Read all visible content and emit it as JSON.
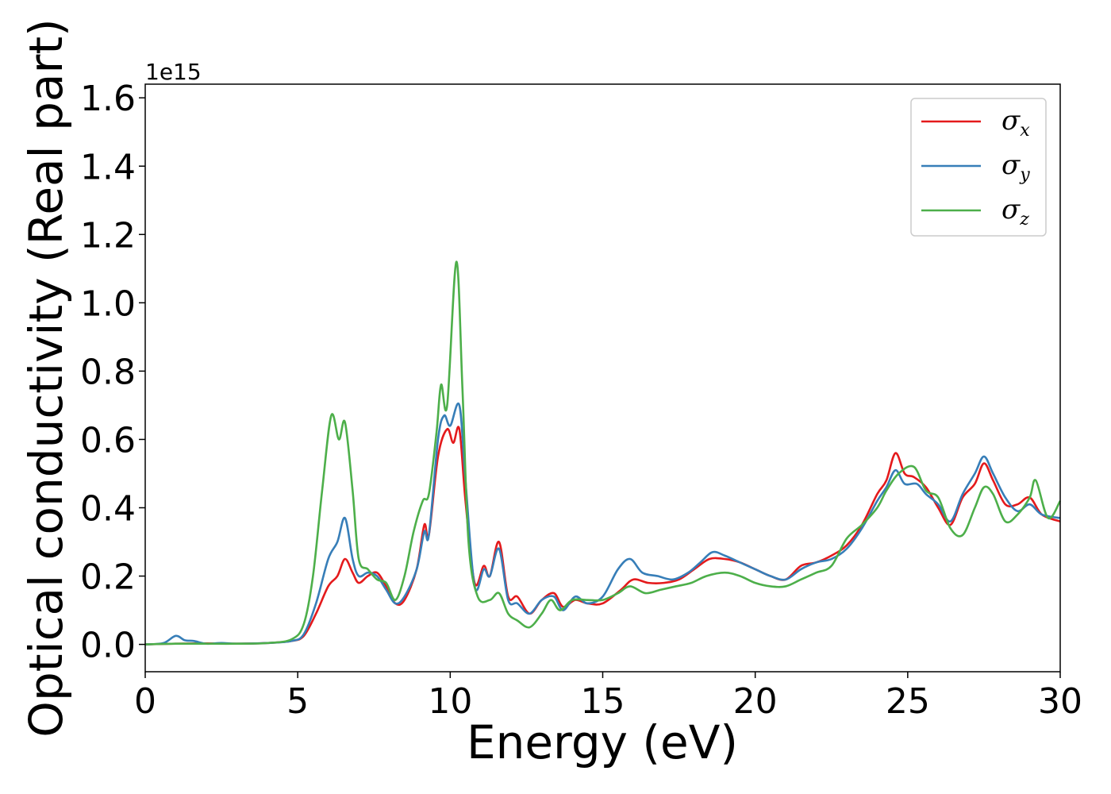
{
  "chart_data": {
    "type": "line",
    "xlabel": "Energy (eV)",
    "ylabel": "Optical conductivity (Real part)",
    "y_offset_label": "1e15",
    "xlim": [
      0,
      30
    ],
    "ylim": [
      -0.08,
      1.64
    ],
    "x_ticks": [
      0,
      5,
      10,
      15,
      20,
      25,
      30
    ],
    "x_tick_labels": [
      "0",
      "5",
      "10",
      "15",
      "20",
      "25",
      "30"
    ],
    "y_ticks": [
      0.0,
      0.2,
      0.4,
      0.6,
      0.8,
      1.0,
      1.2,
      1.4,
      1.6
    ],
    "y_tick_labels": [
      "0.0",
      "0.2",
      "0.4",
      "0.6",
      "0.8",
      "1.0",
      "1.2",
      "1.4",
      "1.6"
    ],
    "grid": false,
    "legend_position": "top-right",
    "series": [
      {
        "name": "σ_x",
        "legend_main": "σ",
        "legend_sub": "x",
        "color": "#e41a1c",
        "points": [
          [
            0,
            0
          ],
          [
            1,
            0.002
          ],
          [
            2,
            0.003
          ],
          [
            3,
            0.002
          ],
          [
            4,
            0.004
          ],
          [
            4.8,
            0.01
          ],
          [
            5.2,
            0.025
          ],
          [
            5.6,
            0.09
          ],
          [
            6.0,
            0.17
          ],
          [
            6.3,
            0.2
          ],
          [
            6.55,
            0.25
          ],
          [
            6.8,
            0.21
          ],
          [
            7.0,
            0.18
          ],
          [
            7.3,
            0.2
          ],
          [
            7.6,
            0.21
          ],
          [
            7.9,
            0.17
          ],
          [
            8.2,
            0.12
          ],
          [
            8.5,
            0.13
          ],
          [
            8.9,
            0.22
          ],
          [
            9.15,
            0.35
          ],
          [
            9.3,
            0.32
          ],
          [
            9.6,
            0.55
          ],
          [
            9.9,
            0.63
          ],
          [
            10.1,
            0.59
          ],
          [
            10.3,
            0.63
          ],
          [
            10.5,
            0.42
          ],
          [
            10.8,
            0.18
          ],
          [
            11.1,
            0.23
          ],
          [
            11.3,
            0.2
          ],
          [
            11.6,
            0.3
          ],
          [
            11.9,
            0.14
          ],
          [
            12.2,
            0.14
          ],
          [
            12.6,
            0.09
          ],
          [
            13.0,
            0.13
          ],
          [
            13.4,
            0.15
          ],
          [
            13.7,
            0.11
          ],
          [
            14.1,
            0.13
          ],
          [
            14.5,
            0.12
          ],
          [
            15.0,
            0.12
          ],
          [
            15.6,
            0.16
          ],
          [
            16.0,
            0.19
          ],
          [
            16.5,
            0.18
          ],
          [
            17.0,
            0.18
          ],
          [
            17.5,
            0.19
          ],
          [
            18.0,
            0.22
          ],
          [
            18.5,
            0.25
          ],
          [
            19.0,
            0.25
          ],
          [
            19.5,
            0.24
          ],
          [
            20.0,
            0.22
          ],
          [
            20.5,
            0.2
          ],
          [
            21.0,
            0.19
          ],
          [
            21.5,
            0.23
          ],
          [
            22.0,
            0.24
          ],
          [
            22.5,
            0.26
          ],
          [
            23.0,
            0.29
          ],
          [
            23.5,
            0.35
          ],
          [
            24.0,
            0.44
          ],
          [
            24.3,
            0.48
          ],
          [
            24.6,
            0.56
          ],
          [
            24.9,
            0.5
          ],
          [
            25.2,
            0.49
          ],
          [
            25.6,
            0.46
          ],
          [
            26.0,
            0.4
          ],
          [
            26.4,
            0.35
          ],
          [
            26.8,
            0.43
          ],
          [
            27.2,
            0.47
          ],
          [
            27.5,
            0.53
          ],
          [
            27.8,
            0.48
          ],
          [
            28.2,
            0.41
          ],
          [
            28.6,
            0.41
          ],
          [
            29.0,
            0.43
          ],
          [
            29.4,
            0.38
          ],
          [
            30.0,
            0.36
          ]
        ]
      },
      {
        "name": "σ_y",
        "legend_main": "σ",
        "legend_sub": "y",
        "color": "#377eb8",
        "points": [
          [
            0,
            0
          ],
          [
            0.6,
            0.004
          ],
          [
            1.0,
            0.025
          ],
          [
            1.3,
            0.012
          ],
          [
            1.6,
            0.01
          ],
          [
            2.0,
            0.002
          ],
          [
            2.5,
            0.004
          ],
          [
            3,
            0.002
          ],
          [
            4,
            0.004
          ],
          [
            4.8,
            0.01
          ],
          [
            5.2,
            0.03
          ],
          [
            5.6,
            0.12
          ],
          [
            6.0,
            0.25
          ],
          [
            6.3,
            0.3
          ],
          [
            6.55,
            0.37
          ],
          [
            6.8,
            0.25
          ],
          [
            7.0,
            0.2
          ],
          [
            7.3,
            0.21
          ],
          [
            7.6,
            0.2
          ],
          [
            7.9,
            0.16
          ],
          [
            8.2,
            0.12
          ],
          [
            8.5,
            0.14
          ],
          [
            8.9,
            0.22
          ],
          [
            9.15,
            0.33
          ],
          [
            9.3,
            0.32
          ],
          [
            9.6,
            0.6
          ],
          [
            9.8,
            0.67
          ],
          [
            10.0,
            0.64
          ],
          [
            10.3,
            0.7
          ],
          [
            10.5,
            0.48
          ],
          [
            10.8,
            0.17
          ],
          [
            11.1,
            0.22
          ],
          [
            11.3,
            0.2
          ],
          [
            11.6,
            0.28
          ],
          [
            11.9,
            0.13
          ],
          [
            12.2,
            0.12
          ],
          [
            12.6,
            0.09
          ],
          [
            13.0,
            0.13
          ],
          [
            13.4,
            0.14
          ],
          [
            13.7,
            0.1
          ],
          [
            14.1,
            0.14
          ],
          [
            14.5,
            0.12
          ],
          [
            15.0,
            0.14
          ],
          [
            15.5,
            0.22
          ],
          [
            15.9,
            0.25
          ],
          [
            16.3,
            0.21
          ],
          [
            16.8,
            0.2
          ],
          [
            17.3,
            0.19
          ],
          [
            17.8,
            0.21
          ],
          [
            18.2,
            0.24
          ],
          [
            18.6,
            0.27
          ],
          [
            19.0,
            0.26
          ],
          [
            19.5,
            0.24
          ],
          [
            20.0,
            0.22
          ],
          [
            20.5,
            0.2
          ],
          [
            21.0,
            0.19
          ],
          [
            21.5,
            0.22
          ],
          [
            22.0,
            0.24
          ],
          [
            22.5,
            0.25
          ],
          [
            23.0,
            0.28
          ],
          [
            23.5,
            0.34
          ],
          [
            24.0,
            0.42
          ],
          [
            24.3,
            0.46
          ],
          [
            24.6,
            0.51
          ],
          [
            24.9,
            0.47
          ],
          [
            25.3,
            0.47
          ],
          [
            25.6,
            0.44
          ],
          [
            26.0,
            0.41
          ],
          [
            26.4,
            0.36
          ],
          [
            26.8,
            0.44
          ],
          [
            27.2,
            0.5
          ],
          [
            27.5,
            0.55
          ],
          [
            27.8,
            0.5
          ],
          [
            28.2,
            0.43
          ],
          [
            28.6,
            0.39
          ],
          [
            29.0,
            0.41
          ],
          [
            29.4,
            0.38
          ],
          [
            30.0,
            0.37
          ]
        ]
      },
      {
        "name": "σ_z",
        "legend_main": "σ",
        "legend_sub": "z",
        "color": "#4daf4a",
        "points": [
          [
            0,
            0
          ],
          [
            1,
            0.002
          ],
          [
            2,
            0.002
          ],
          [
            3,
            0.002
          ],
          [
            4,
            0.004
          ],
          [
            4.8,
            0.015
          ],
          [
            5.2,
            0.06
          ],
          [
            5.5,
            0.2
          ],
          [
            5.8,
            0.45
          ],
          [
            6.1,
            0.67
          ],
          [
            6.35,
            0.6
          ],
          [
            6.55,
            0.65
          ],
          [
            6.8,
            0.45
          ],
          [
            7.0,
            0.25
          ],
          [
            7.3,
            0.22
          ],
          [
            7.6,
            0.19
          ],
          [
            7.9,
            0.18
          ],
          [
            8.2,
            0.13
          ],
          [
            8.5,
            0.2
          ],
          [
            8.8,
            0.33
          ],
          [
            9.1,
            0.42
          ],
          [
            9.3,
            0.44
          ],
          [
            9.55,
            0.62
          ],
          [
            9.7,
            0.76
          ],
          [
            9.9,
            0.7
          ],
          [
            10.2,
            1.12
          ],
          [
            10.4,
            0.75
          ],
          [
            10.6,
            0.3
          ],
          [
            10.9,
            0.14
          ],
          [
            11.3,
            0.13
          ],
          [
            11.6,
            0.15
          ],
          [
            11.9,
            0.09
          ],
          [
            12.2,
            0.07
          ],
          [
            12.6,
            0.05
          ],
          [
            13.0,
            0.09
          ],
          [
            13.3,
            0.13
          ],
          [
            13.6,
            0.1
          ],
          [
            14.0,
            0.13
          ],
          [
            14.5,
            0.13
          ],
          [
            15.0,
            0.13
          ],
          [
            15.5,
            0.15
          ],
          [
            15.9,
            0.17
          ],
          [
            16.4,
            0.15
          ],
          [
            16.9,
            0.16
          ],
          [
            17.4,
            0.17
          ],
          [
            17.9,
            0.18
          ],
          [
            18.4,
            0.2
          ],
          [
            19.0,
            0.21
          ],
          [
            19.5,
            0.2
          ],
          [
            20.0,
            0.18
          ],
          [
            20.5,
            0.17
          ],
          [
            21.0,
            0.17
          ],
          [
            21.5,
            0.19
          ],
          [
            22.0,
            0.21
          ],
          [
            22.5,
            0.23
          ],
          [
            23.0,
            0.31
          ],
          [
            23.5,
            0.35
          ],
          [
            24.0,
            0.4
          ],
          [
            24.3,
            0.45
          ],
          [
            24.7,
            0.5
          ],
          [
            25.2,
            0.52
          ],
          [
            25.6,
            0.45
          ],
          [
            26.0,
            0.43
          ],
          [
            26.4,
            0.34
          ],
          [
            26.8,
            0.32
          ],
          [
            27.2,
            0.4
          ],
          [
            27.5,
            0.46
          ],
          [
            27.8,
            0.44
          ],
          [
            28.2,
            0.36
          ],
          [
            28.6,
            0.38
          ],
          [
            29.0,
            0.43
          ],
          [
            29.2,
            0.48
          ],
          [
            29.6,
            0.37
          ],
          [
            30.0,
            0.42
          ]
        ]
      }
    ]
  }
}
